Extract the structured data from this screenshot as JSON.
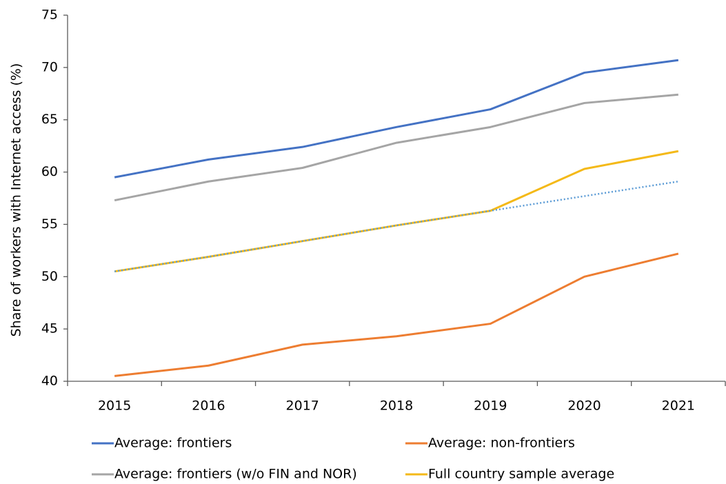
{
  "chart_data": {
    "type": "line",
    "y_label": "Share of workers with Internet access (%)",
    "categories": [
      "2015",
      "2016",
      "2017",
      "2018",
      "2019",
      "2020",
      "2021"
    ],
    "series": [
      {
        "name": "Average: frontiers",
        "color": "#4472c4",
        "values": [
          59.5,
          61.2,
          62.4,
          64.3,
          66.0,
          69.5,
          70.7
        ]
      },
      {
        "name": "Average: non-frontiers",
        "color": "#ed7d31",
        "values": [
          40.5,
          41.5,
          43.5,
          44.3,
          45.5,
          50.0,
          52.2
        ]
      },
      {
        "name": "Average: frontiers (w/o FIN and NOR)",
        "color": "#a5a5a5",
        "values": [
          57.3,
          59.1,
          60.4,
          62.8,
          64.3,
          66.6,
          67.4
        ]
      },
      {
        "name": "Full country sample average",
        "color": "#f4b918",
        "values": [
          50.5,
          51.9,
          53.4,
          54.9,
          56.3,
          60.3,
          62.0
        ]
      },
      {
        "color": "#5b9bd5",
        "dash": "dotted",
        "values": [
          50.5,
          51.9,
          53.4,
          54.9,
          56.3,
          57.7,
          59.1
        ]
      }
    ],
    "ylim": [
      40,
      75
    ],
    "yticks": [
      40,
      45,
      50,
      55,
      60,
      65,
      70,
      75
    ]
  }
}
